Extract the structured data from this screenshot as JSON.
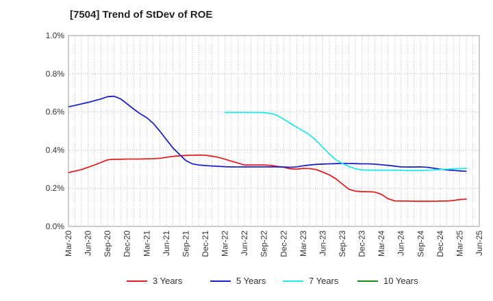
{
  "chart_data": {
    "type": "line",
    "title": "[7504]  Trend of StDev of ROE",
    "xlabel": "",
    "ylabel": "",
    "ylim": [
      0,
      1.0
    ],
    "y_ticks": [
      "0.0%",
      "0.2%",
      "0.4%",
      "0.6%",
      "0.8%",
      "1.0%"
    ],
    "x_ticks": [
      "Mar-20",
      "Jun-20",
      "Sep-20",
      "Dec-20",
      "Mar-21",
      "Jun-21",
      "Sep-21",
      "Dec-21",
      "Mar-22",
      "Jun-22",
      "Sep-22",
      "Dec-22",
      "Mar-23",
      "Jun-23",
      "Sep-23",
      "Dec-23",
      "Mar-24",
      "Jun-24",
      "Sep-24",
      "Dec-24",
      "Mar-25",
      "Jun-25"
    ],
    "grid": true,
    "legend_position": "bottom",
    "series": [
      {
        "name": "3 Years",
        "color": "#e02020",
        "points": [
          [
            "Mar-20",
            0.282
          ],
          [
            "Apr-20",
            0.29
          ],
          [
            "May-20",
            0.298
          ],
          [
            "Jun-20",
            0.31
          ],
          [
            "Jul-20",
            0.322
          ],
          [
            "Aug-20",
            0.336
          ],
          [
            "Sep-20",
            0.349
          ],
          [
            "Oct-20",
            0.352
          ],
          [
            "Nov-20",
            0.352
          ],
          [
            "Dec-20",
            0.353
          ],
          [
            "Jan-21",
            0.353
          ],
          [
            "Feb-21",
            0.353
          ],
          [
            "Mar-21",
            0.354
          ],
          [
            "Apr-21",
            0.355
          ],
          [
            "May-21",
            0.357
          ],
          [
            "Jun-21",
            0.362
          ],
          [
            "Jul-21",
            0.367
          ],
          [
            "Aug-21",
            0.37
          ],
          [
            "Sep-21",
            0.372
          ],
          [
            "Oct-21",
            0.373
          ],
          [
            "Nov-21",
            0.374
          ],
          [
            "Dec-21",
            0.373
          ],
          [
            "Jan-22",
            0.368
          ],
          [
            "Feb-22",
            0.362
          ],
          [
            "Mar-22",
            0.352
          ],
          [
            "Apr-22",
            0.342
          ],
          [
            "May-22",
            0.332
          ],
          [
            "Jun-22",
            0.322
          ],
          [
            "Jul-22",
            0.322
          ],
          [
            "Aug-22",
            0.322
          ],
          [
            "Sep-22",
            0.322
          ],
          [
            "Oct-22",
            0.32
          ],
          [
            "Nov-22",
            0.315
          ],
          [
            "Dec-22",
            0.31
          ],
          [
            "Jan-23",
            0.302
          ],
          [
            "Feb-23",
            0.3
          ],
          [
            "Mar-23",
            0.304
          ],
          [
            "Apr-23",
            0.303
          ],
          [
            "May-23",
            0.298
          ],
          [
            "Jun-23",
            0.285
          ],
          [
            "Jul-23",
            0.27
          ],
          [
            "Aug-23",
            0.25
          ],
          [
            "Sep-23",
            0.222
          ],
          [
            "Oct-23",
            0.195
          ],
          [
            "Nov-23",
            0.185
          ],
          [
            "Dec-23",
            0.182
          ],
          [
            "Jan-24",
            0.182
          ],
          [
            "Feb-24",
            0.18
          ],
          [
            "Mar-24",
            0.168
          ],
          [
            "Apr-24",
            0.145
          ],
          [
            "May-24",
            0.134
          ],
          [
            "Jun-24",
            0.133
          ],
          [
            "Jul-24",
            0.133
          ],
          [
            "Aug-24",
            0.132
          ],
          [
            "Sep-24",
            0.132
          ],
          [
            "Oct-24",
            0.132
          ],
          [
            "Nov-24",
            0.132
          ],
          [
            "Dec-24",
            0.133
          ],
          [
            "Jan-25",
            0.133
          ],
          [
            "Feb-25",
            0.136
          ],
          [
            "Mar-25",
            0.141
          ],
          [
            "Apr-25",
            0.143
          ]
        ]
      },
      {
        "name": "5 Years",
        "color": "#1c20c8",
        "points": [
          [
            "Mar-20",
            0.627
          ],
          [
            "Apr-20",
            0.634
          ],
          [
            "May-20",
            0.642
          ],
          [
            "Jun-20",
            0.65
          ],
          [
            "Jul-20",
            0.659
          ],
          [
            "Aug-20",
            0.668
          ],
          [
            "Sep-20",
            0.68
          ],
          [
            "Oct-20",
            0.682
          ],
          [
            "Nov-20",
            0.668
          ],
          [
            "Dec-20",
            0.642
          ],
          [
            "Jan-21",
            0.615
          ],
          [
            "Feb-21",
            0.59
          ],
          [
            "Mar-21",
            0.57
          ],
          [
            "Apr-21",
            0.54
          ],
          [
            "May-21",
            0.5
          ],
          [
            "Jun-21",
            0.455
          ],
          [
            "Jul-21",
            0.412
          ],
          [
            "Aug-21",
            0.378
          ],
          [
            "Sep-21",
            0.345
          ],
          [
            "Oct-21",
            0.328
          ],
          [
            "Nov-21",
            0.322
          ],
          [
            "Dec-21",
            0.319
          ],
          [
            "Jan-22",
            0.317
          ],
          [
            "Feb-22",
            0.315
          ],
          [
            "Mar-22",
            0.313
          ],
          [
            "Apr-22",
            0.312
          ],
          [
            "May-22",
            0.312
          ],
          [
            "Jun-22",
            0.312
          ],
          [
            "Jul-22",
            0.312
          ],
          [
            "Aug-22",
            0.312
          ],
          [
            "Sep-22",
            0.312
          ],
          [
            "Oct-22",
            0.312
          ],
          [
            "Nov-22",
            0.312
          ],
          [
            "Dec-22",
            0.311
          ],
          [
            "Jan-23",
            0.31
          ],
          [
            "Feb-23",
            0.312
          ],
          [
            "Mar-23",
            0.318
          ],
          [
            "Apr-23",
            0.322
          ],
          [
            "May-23",
            0.325
          ],
          [
            "Jun-23",
            0.327
          ],
          [
            "Jul-23",
            0.328
          ],
          [
            "Aug-23",
            0.329
          ],
          [
            "Sep-23",
            0.33
          ],
          [
            "Oct-23",
            0.33
          ],
          [
            "Nov-23",
            0.329
          ],
          [
            "Dec-23",
            0.328
          ],
          [
            "Jan-24",
            0.328
          ],
          [
            "Feb-24",
            0.326
          ],
          [
            "Mar-24",
            0.323
          ],
          [
            "Apr-24",
            0.32
          ],
          [
            "May-24",
            0.316
          ],
          [
            "Jun-24",
            0.312
          ],
          [
            "Jul-24",
            0.311
          ],
          [
            "Aug-24",
            0.311
          ],
          [
            "Sep-24",
            0.312
          ],
          [
            "Oct-24",
            0.31
          ],
          [
            "Nov-24",
            0.305
          ],
          [
            "Dec-24",
            0.3
          ],
          [
            "Jan-25",
            0.296
          ],
          [
            "Feb-25",
            0.294
          ],
          [
            "Mar-25",
            0.291
          ],
          [
            "Apr-25",
            0.289
          ]
        ]
      },
      {
        "name": "7 Years",
        "color": "#22e8e8",
        "points": [
          [
            "Mar-22",
            0.597
          ],
          [
            "Apr-22",
            0.597
          ],
          [
            "May-22",
            0.597
          ],
          [
            "Jun-22",
            0.597
          ],
          [
            "Jul-22",
            0.597
          ],
          [
            "Aug-22",
            0.597
          ],
          [
            "Sep-22",
            0.596
          ],
          [
            "Oct-22",
            0.592
          ],
          [
            "Nov-22",
            0.582
          ],
          [
            "Dec-22",
            0.562
          ],
          [
            "Jan-23",
            0.54
          ],
          [
            "Feb-23",
            0.52
          ],
          [
            "Mar-23",
            0.5
          ],
          [
            "Apr-23",
            0.48
          ],
          [
            "May-23",
            0.45
          ],
          [
            "Jun-23",
            0.415
          ],
          [
            "Jul-23",
            0.38
          ],
          [
            "Aug-23",
            0.35
          ],
          [
            "Sep-23",
            0.33
          ],
          [
            "Oct-23",
            0.314
          ],
          [
            "Nov-23",
            0.302
          ],
          [
            "Dec-23",
            0.296
          ],
          [
            "Jan-24",
            0.295
          ],
          [
            "Feb-24",
            0.295
          ],
          [
            "Mar-24",
            0.295
          ],
          [
            "Apr-24",
            0.295
          ],
          [
            "May-24",
            0.295
          ],
          [
            "Jun-24",
            0.294
          ],
          [
            "Jul-24",
            0.293
          ],
          [
            "Aug-24",
            0.293
          ],
          [
            "Sep-24",
            0.293
          ],
          [
            "Oct-24",
            0.294
          ],
          [
            "Nov-24",
            0.296
          ],
          [
            "Dec-24",
            0.298
          ],
          [
            "Jan-25",
            0.3
          ],
          [
            "Feb-25",
            0.302
          ],
          [
            "Mar-25",
            0.303
          ],
          [
            "Apr-25",
            0.304
          ]
        ]
      },
      {
        "name": "10 Years",
        "color": "#1a8a1a",
        "points": []
      }
    ]
  }
}
